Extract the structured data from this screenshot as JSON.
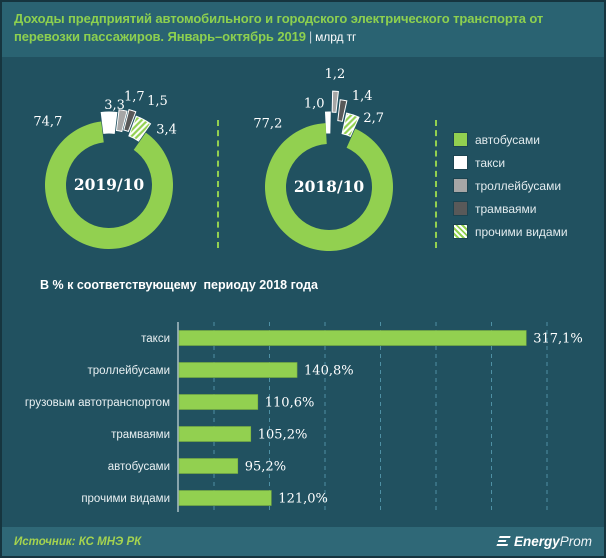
{
  "header": {
    "title": "Доходы предприятий автомобильного и городского электрического транспорта от перевозки пассажиров. Январь–октябрь 2019",
    "separator": "|",
    "unit": "млрд тг"
  },
  "palette": {
    "background": "#215160",
    "title_band": "#2a6372",
    "footer_band": "#2f6877",
    "accent_green": "#92d050",
    "white": "#ffffff",
    "gray": "#a6a6a6",
    "dark_gray": "#595959",
    "gridline": "#4e90a4",
    "axis": "#cbdbe0"
  },
  "legend": {
    "items": [
      {
        "label": "автобусами",
        "swatch": "#92d050"
      },
      {
        "label": "такси",
        "swatch": "#ffffff"
      },
      {
        "label": "троллейбусами",
        "swatch": "#a6a6a6"
      },
      {
        "label": "трамваями",
        "swatch": "#595959"
      },
      {
        "label": "прочими видами",
        "swatch": "hatch"
      }
    ]
  },
  "chart_data": [
    {
      "type": "pie",
      "donut": true,
      "title": "2019/10",
      "unit": "млрд тг",
      "categories": [
        "автобусами",
        "такси",
        "троллейбусами",
        "трамваями",
        "прочими видами"
      ],
      "values": [
        74.7,
        3.3,
        1.7,
        1.5,
        3.4
      ],
      "colors": [
        "#92d050",
        "#ffffff",
        "#a6a6a6",
        "#595959",
        "hatch"
      ],
      "legend_position": "right"
    },
    {
      "type": "pie",
      "donut": true,
      "title": "2018/10",
      "unit": "млрд тг",
      "categories": [
        "автобусами",
        "такси",
        "троллейбусами",
        "трамваями",
        "прочими видами"
      ],
      "values": [
        77.2,
        1.0,
        1.2,
        1.4,
        2.7
      ],
      "colors": [
        "#92d050",
        "#ffffff",
        "#a6a6a6",
        "#595959",
        "hatch"
      ],
      "legend_position": "right"
    },
    {
      "type": "bar",
      "orientation": "horizontal",
      "title": "В % к соответствующему  периоду 2018 года",
      "categories": [
        "такси",
        "троллейбусами",
        "грузовым автотранспортом",
        "трамваями",
        "автобусами",
        "прочими видами"
      ],
      "values": [
        317.1,
        140.8,
        110.6,
        105.2,
        95.2,
        121.0
      ],
      "value_suffix": "%",
      "xlim": [
        50,
        350
      ],
      "grid": true,
      "bar_color": "#92d050"
    }
  ],
  "footer": {
    "source": "Источник: КС МНЭ РК",
    "brand_bold": "Energy",
    "brand_light": "Prom"
  }
}
